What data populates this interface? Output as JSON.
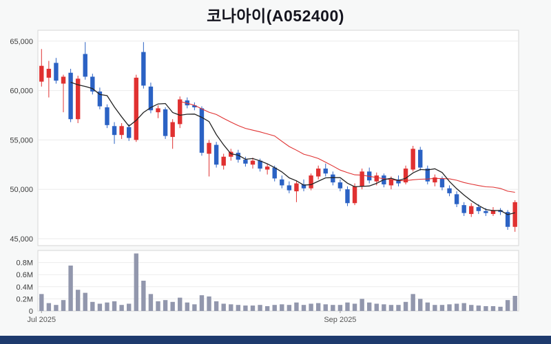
{
  "title": "코나아이(A052400)",
  "colors": {
    "up": "#e03131",
    "down": "#2b62c4",
    "ma_short": "#222222",
    "ma_long": "#e03131",
    "volume_bar": "#9297ad",
    "grid": "#ebebeb",
    "panel_border": "#d6d6d6",
    "panel_fill": "#ffffff",
    "background": "#f7f8f8",
    "footer": "#1e3a6d",
    "axis_text": "#3c3c3c",
    "x_axis_text": "#555555"
  },
  "chart_data": {
    "type": "candlestick",
    "title": "코나아이(A052400)",
    "grid": "horizontal",
    "legend": "none",
    "price_axis": {
      "domain": [
        44300,
        66100
      ],
      "ticks": [
        45000,
        50000,
        55000,
        60000,
        65000
      ],
      "tick_labels": [
        "45,000",
        "50,000",
        "55,000",
        "60,000",
        "65,000"
      ]
    },
    "volume_axis": {
      "domain": [
        0,
        1000000
      ],
      "ticks": [
        0,
        200000,
        400000,
        600000,
        800000
      ],
      "tick_labels": [
        "0",
        "0.2M",
        "0.4M",
        "0.6M",
        "0.8M"
      ]
    },
    "x_tick_labels": [
      {
        "index": 0,
        "label": "Jul 2025"
      },
      {
        "index": 41,
        "label": "Sep 2025"
      }
    ],
    "moving_averages": [
      {
        "name": "MA20",
        "window": 20,
        "color_key": "ma_long"
      },
      {
        "name": "MA5",
        "window": 5,
        "color_key": "ma_short"
      }
    ],
    "candles_format": [
      "open",
      "high",
      "low",
      "close",
      "volume"
    ],
    "candles": [
      [
        60900,
        64200,
        60400,
        62500,
        280000
      ],
      [
        61300,
        63000,
        59300,
        62200,
        130000
      ],
      [
        62800,
        63300,
        60700,
        61000,
        100000
      ],
      [
        60700,
        61600,
        57800,
        61400,
        180000
      ],
      [
        61800,
        62200,
        56800,
        57100,
        750000
      ],
      [
        57100,
        61500,
        56700,
        61200,
        350000
      ],
      [
        63700,
        64900,
        61100,
        61400,
        300000
      ],
      [
        61400,
        61700,
        59600,
        59900,
        150000
      ],
      [
        59900,
        60300,
        58100,
        58400,
        120000
      ],
      [
        58300,
        58600,
        56200,
        56500,
        140000
      ],
      [
        56400,
        56800,
        54600,
        55500,
        160000
      ],
      [
        55500,
        56700,
        55100,
        56400,
        100000
      ],
      [
        56300,
        56600,
        54900,
        55200,
        120000
      ],
      [
        55000,
        61600,
        54800,
        61300,
        950000
      ],
      [
        63900,
        64900,
        60200,
        60500,
        500000
      ],
      [
        60400,
        60800,
        57700,
        58000,
        280000
      ],
      [
        57800,
        58500,
        57200,
        58200,
        160000
      ],
      [
        58100,
        58300,
        55100,
        55400,
        180000
      ],
      [
        55300,
        57100,
        54100,
        56800,
        150000
      ],
      [
        56600,
        59400,
        56200,
        59100,
        220000
      ],
      [
        59000,
        59300,
        58200,
        58500,
        140000
      ],
      [
        58500,
        58800,
        58000,
        58300,
        110000
      ],
      [
        58200,
        58400,
        53400,
        53700,
        260000
      ],
      [
        53600,
        55000,
        51300,
        54700,
        240000
      ],
      [
        54500,
        54800,
        52200,
        52500,
        160000
      ],
      [
        52400,
        53600,
        52000,
        53300,
        120000
      ],
      [
        53300,
        54100,
        52900,
        53800,
        110000
      ],
      [
        53700,
        54000,
        52700,
        53000,
        100000
      ],
      [
        53000,
        53300,
        52300,
        52600,
        90000
      ],
      [
        52500,
        53200,
        52100,
        52900,
        90000
      ],
      [
        52900,
        53100,
        51800,
        52100,
        100000
      ],
      [
        52000,
        52600,
        51500,
        52300,
        80000
      ],
      [
        52200,
        52400,
        50800,
        51100,
        100000
      ],
      [
        51000,
        51400,
        50100,
        50400,
        110000
      ],
      [
        50400,
        50800,
        49600,
        49900,
        100000
      ],
      [
        49800,
        50900,
        48700,
        50600,
        140000
      ],
      [
        50500,
        51000,
        49800,
        50100,
        100000
      ],
      [
        50100,
        51600,
        49900,
        51400,
        120000
      ],
      [
        51300,
        52400,
        51000,
        52100,
        130000
      ],
      [
        52100,
        52600,
        51300,
        51600,
        110000
      ],
      [
        51500,
        51800,
        50400,
        50700,
        100000
      ],
      [
        50700,
        51000,
        49800,
        50100,
        100000
      ],
      [
        50000,
        50300,
        48300,
        48600,
        140000
      ],
      [
        48600,
        50600,
        48400,
        50300,
        120000
      ],
      [
        50300,
        52100,
        50000,
        51800,
        200000
      ],
      [
        51800,
        52200,
        50600,
        50900,
        140000
      ],
      [
        50800,
        51700,
        50400,
        51400,
        120000
      ],
      [
        51400,
        51600,
        50200,
        50500,
        110000
      ],
      [
        50400,
        51300,
        50000,
        51000,
        100000
      ],
      [
        51000,
        51400,
        50300,
        50600,
        100000
      ],
      [
        50700,
        52400,
        50500,
        52100,
        150000
      ],
      [
        52000,
        54400,
        51800,
        54100,
        280000
      ],
      [
        54000,
        54300,
        51900,
        52200,
        200000
      ],
      [
        52100,
        52400,
        50500,
        50800,
        140000
      ],
      [
        50700,
        51500,
        50300,
        51200,
        100000
      ],
      [
        51100,
        51300,
        49900,
        50200,
        100000
      ],
      [
        50100,
        50400,
        49300,
        49600,
        110000
      ],
      [
        49500,
        49800,
        48200,
        48500,
        120000
      ],
      [
        48400,
        48700,
        47300,
        47600,
        130000
      ],
      [
        47500,
        48600,
        47200,
        48300,
        100000
      ],
      [
        48200,
        48500,
        47500,
        47800,
        90000
      ],
      [
        47800,
        48100,
        47300,
        47600,
        80000
      ],
      [
        47500,
        48200,
        47300,
        47900,
        80000
      ],
      [
        47900,
        48100,
        47400,
        47700,
        70000
      ],
      [
        47700,
        47900,
        45900,
        46200,
        180000
      ],
      [
        46200,
        48900,
        45700,
        48700,
        250000
      ]
    ]
  }
}
